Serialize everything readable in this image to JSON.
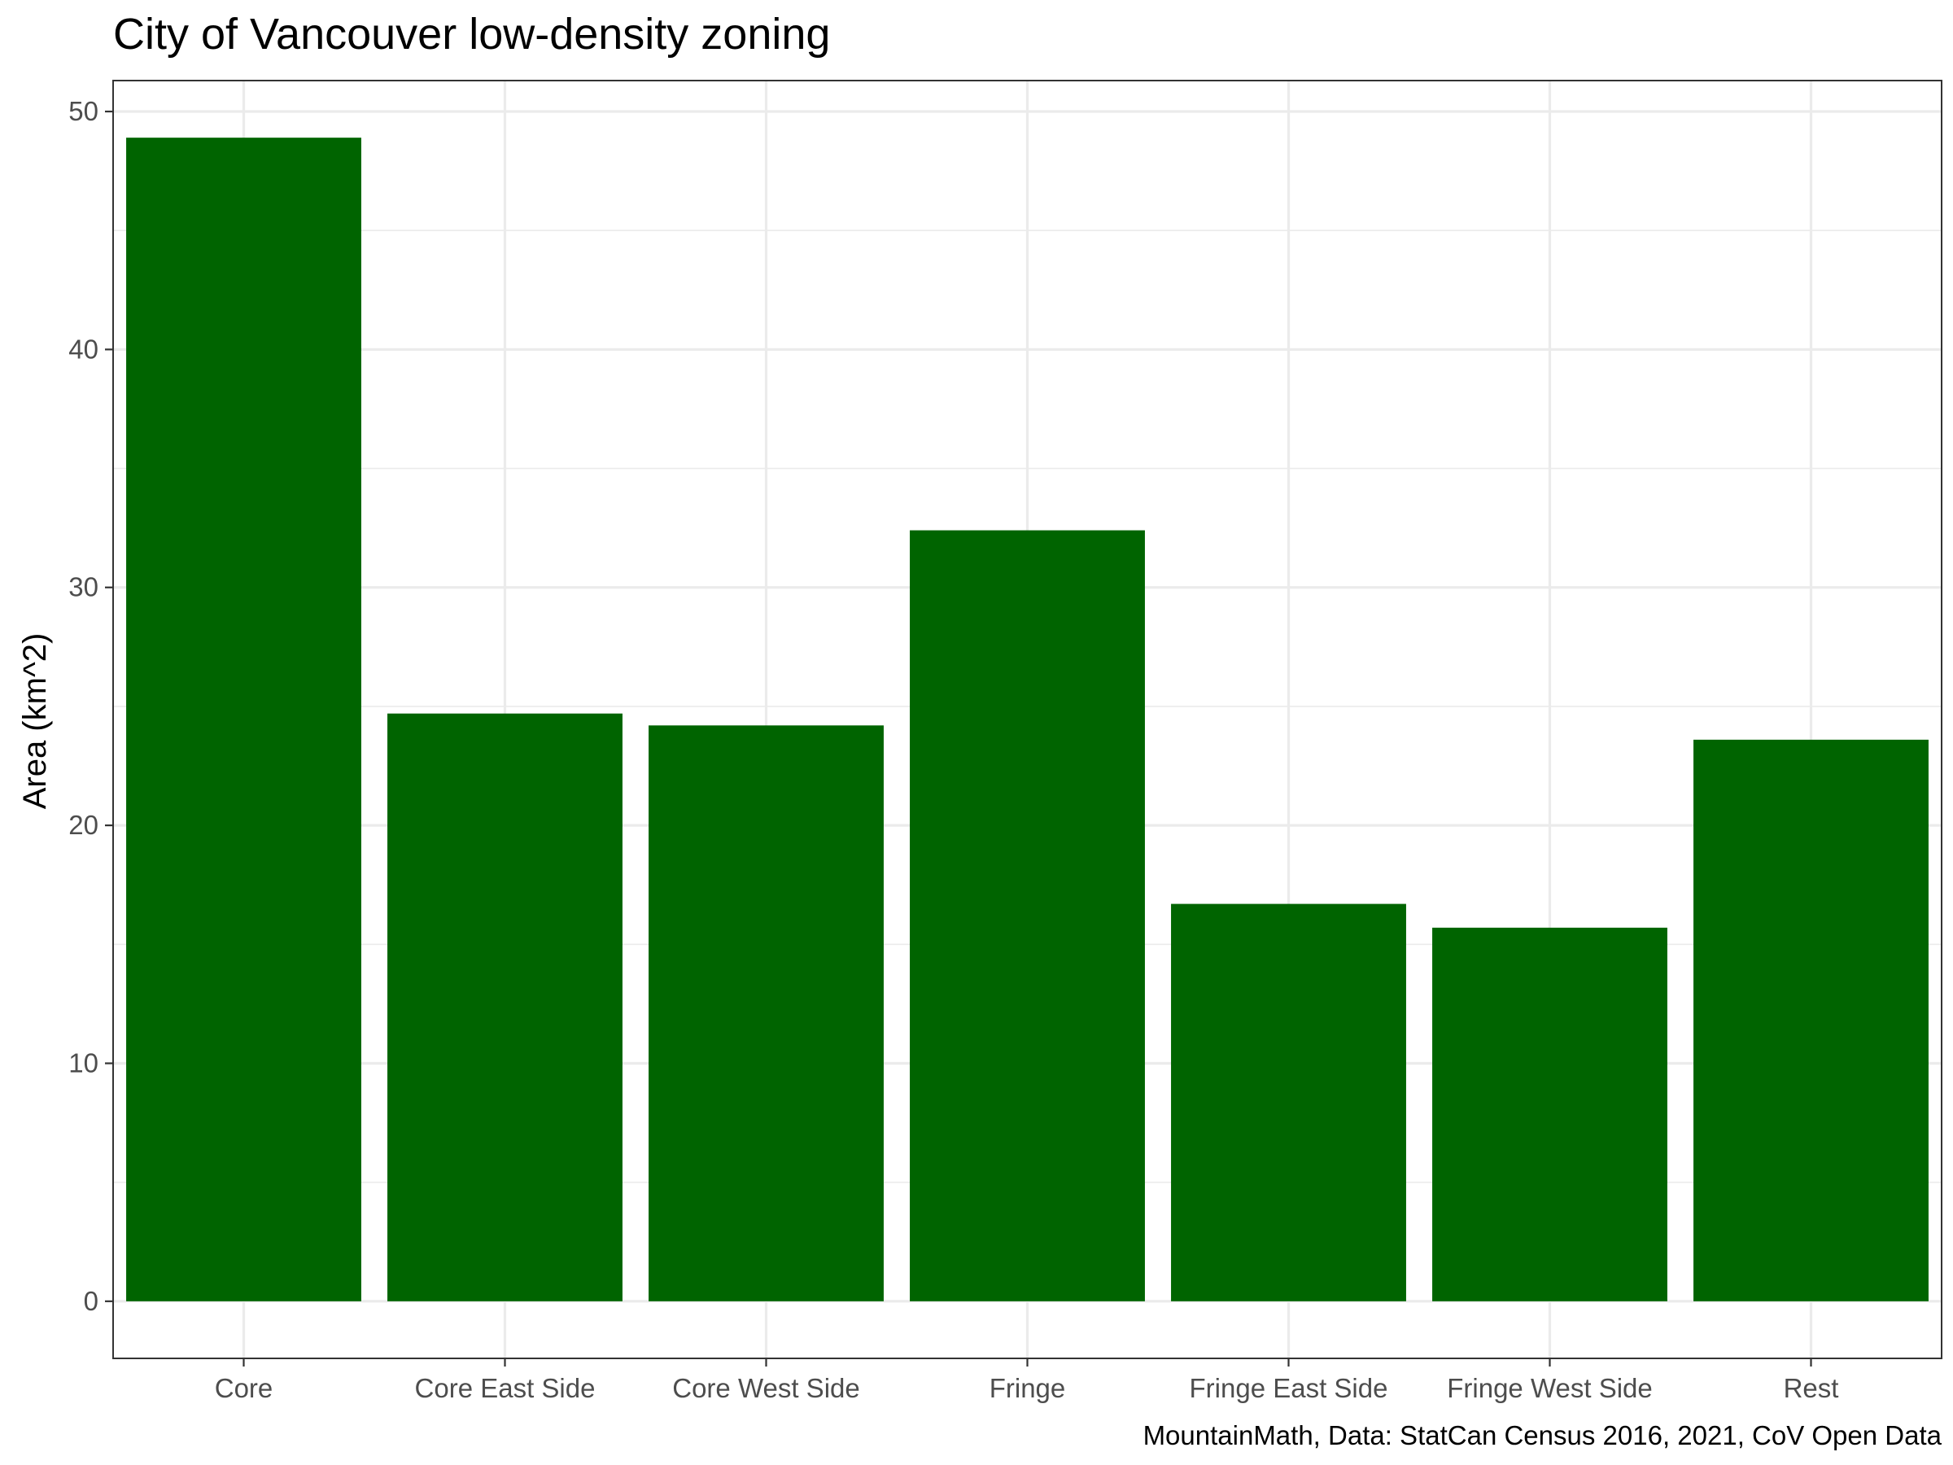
{
  "chart_data": {
    "type": "bar",
    "title": "City of Vancouver low-density zoning",
    "xlabel": "",
    "ylabel": "Area (km^2)",
    "caption": "MountainMath, Data: StatCan Census 2016, 2021, CoV Open Data",
    "categories": [
      "Core",
      "Core East Side",
      "Core West Side",
      "Fringe",
      "Fringe East Side",
      "Fringe West Side",
      "Rest"
    ],
    "values": [
      48.9,
      24.7,
      24.2,
      32.4,
      16.7,
      15.7,
      23.6
    ],
    "ylim": [
      -2.4,
      51.3
    ],
    "yticks": [
      0,
      10,
      20,
      30,
      40,
      50
    ],
    "yticks_minor": [
      5,
      15,
      25,
      35,
      45
    ],
    "bar_color": "#006400",
    "grid": true,
    "legend": "none"
  }
}
